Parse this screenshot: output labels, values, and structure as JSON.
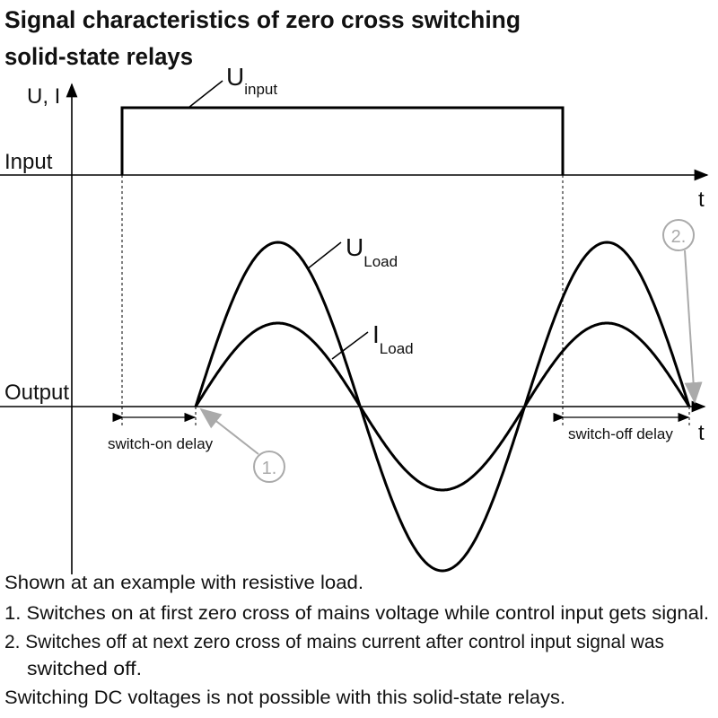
{
  "header": {
    "title_lines": [
      "Signal characteristics of zero cross switching",
      "solid-state relays"
    ]
  },
  "diagram": {
    "y_axis_label": "U, I",
    "input_label": "Input",
    "output_label": "Output",
    "time_label_input": "t",
    "time_label_output": "t",
    "u_input": {
      "symbol": "U",
      "subscript": "input"
    },
    "u_load": {
      "symbol": "U",
      "subscript": "Load"
    },
    "i_load": {
      "symbol": "I",
      "subscript": "Load"
    },
    "switch_on_delay": "switch-on delay",
    "switch_off_delay": "switch-off delay",
    "callout_1": "1.",
    "callout_2": "2."
  },
  "notes": [
    "Shown at an example with resistive load.",
    "1. Switches on at first zero cross of mains voltage while control input gets signal.",
    "2. Switches off at next zero cross of mains current after control input signal was",
    "switched off.",
    "Switching DC voltages is not possible with this solid-state relays."
  ]
}
